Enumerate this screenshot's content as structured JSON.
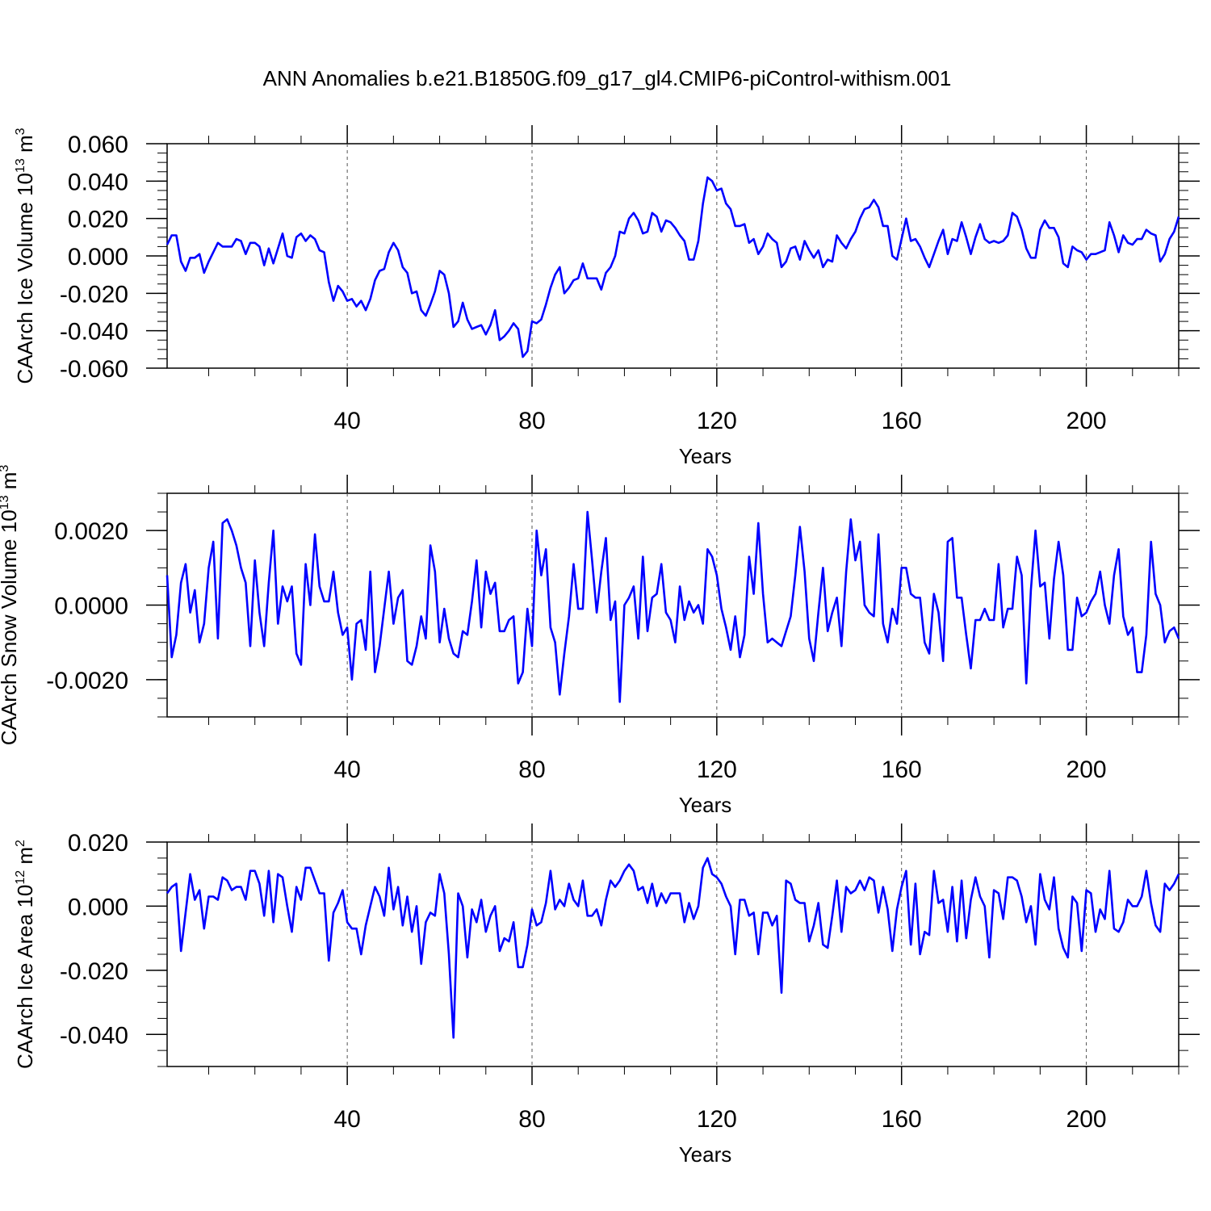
{
  "title": "ANN Anomalies b.e21.B1850G.f09_g17_gl4.CMIP6-piControl-withism.001",
  "chart_data": [
    {
      "type": "line",
      "name": "ice-volume",
      "title": "ANN Anomalies b.e21.B1850G.f09_g17_gl4.CMIP6-piControl-withism.001",
      "xlabel": "Years",
      "ylabel": {
        "text": "CAArch Ice Volume 10",
        "exp1": "13",
        "mid": " m",
        "exp2": "3"
      },
      "xlim": [
        1,
        220
      ],
      "ylim": [
        -0.06,
        0.06
      ],
      "xticks": [
        40,
        80,
        120,
        160,
        200
      ],
      "xtick_labels": [
        "40",
        "80",
        "120",
        "160",
        "200"
      ],
      "yticks": [
        0.06,
        0.04,
        0.02,
        0.0,
        -0.02,
        -0.04,
        -0.06
      ],
      "ytick_labels": [
        "0.060",
        "0.040",
        "0.020",
        "0.000",
        "-0.020",
        "-0.040",
        "-0.060"
      ],
      "grid": "dashed vertical at major x ticks",
      "color": "#0000ff",
      "series": [
        {
          "name": "CAArch Ice Volume",
          "x_start": 1,
          "values": [
            0.006,
            0.011,
            0.011,
            -0.003,
            -0.008,
            -0.001,
            -0.001,
            0.001,
            -0.009,
            -0.003,
            0.002,
            0.007,
            0.005,
            0.005,
            0.005,
            0.009,
            0.008,
            0.001,
            0.007,
            0.007,
            0.005,
            -0.005,
            0.004,
            -0.004,
            0.004,
            0.012,
            0.0,
            -0.001,
            0.01,
            0.012,
            0.008,
            0.011,
            0.009,
            0.003,
            0.002,
            -0.014,
            -0.024,
            -0.016,
            -0.019,
            -0.024,
            -0.023,
            -0.027,
            -0.024,
            -0.029,
            -0.023,
            -0.013,
            -0.008,
            -0.007,
            0.002,
            0.007,
            0.003,
            -0.006,
            -0.009,
            -0.02,
            -0.019,
            -0.029,
            -0.032,
            -0.026,
            -0.019,
            -0.008,
            -0.01,
            -0.02,
            -0.038,
            -0.035,
            -0.025,
            -0.034,
            -0.039,
            -0.038,
            -0.037,
            -0.042,
            -0.037,
            -0.029,
            -0.045,
            -0.043,
            -0.04,
            -0.036,
            -0.039,
            -0.054,
            -0.051,
            -0.035,
            -0.036,
            -0.034,
            -0.026,
            -0.017,
            -0.01,
            -0.006,
            -0.02,
            -0.017,
            -0.013,
            -0.012,
            -0.004,
            -0.012,
            -0.012,
            -0.012,
            -0.018,
            -0.009,
            -0.006,
            0.0,
            0.013,
            0.012,
            0.02,
            0.023,
            0.019,
            0.012,
            0.013,
            0.023,
            0.021,
            0.013,
            0.019,
            0.018,
            0.015,
            0.011,
            0.008,
            -0.002,
            -0.002,
            0.008,
            0.028,
            0.042,
            0.04,
            0.035,
            0.036,
            0.028,
            0.025,
            0.016,
            0.016,
            0.017,
            0.007,
            0.009,
            0.001,
            0.005,
            0.012,
            0.009,
            0.007,
            -0.006,
            -0.003,
            0.004,
            0.005,
            -0.002,
            0.008,
            0.003,
            -0.001,
            0.003,
            -0.006,
            -0.002,
            -0.003,
            0.011,
            0.007,
            0.004,
            0.009,
            0.013,
            0.02,
            0.025,
            0.026,
            0.03,
            0.026,
            0.016,
            0.016,
            0.0,
            -0.002,
            0.009,
            0.02,
            0.008,
            0.009,
            0.005,
            -0.001,
            -0.006,
            0.001,
            0.008,
            0.014,
            0.001,
            0.009,
            0.008,
            0.018,
            0.01,
            0.001,
            0.01,
            0.017,
            0.009,
            0.007,
            0.008,
            0.007,
            0.008,
            0.011,
            0.023,
            0.021,
            0.014,
            0.004,
            -0.001,
            -0.001,
            0.014,
            0.019,
            0.015,
            0.015,
            0.01,
            -0.004,
            -0.006,
            0.005,
            0.003,
            0.002,
            -0.002,
            0.001,
            0.001,
            0.002,
            0.003,
            0.018,
            0.011,
            0.002,
            0.011,
            0.007,
            0.006,
            0.009,
            0.009,
            0.014,
            0.012,
            0.011,
            -0.003,
            0.001,
            0.009,
            0.013,
            0.021
          ]
        }
      ]
    },
    {
      "type": "line",
      "name": "snow-volume",
      "xlabel": "Years",
      "ylabel": {
        "text": "CAArch Snow Volume 10",
        "exp1": "13",
        "mid": " m",
        "exp2": "3"
      },
      "xlim": [
        1,
        220
      ],
      "ylim": [
        -0.003,
        0.003
      ],
      "xticks": [
        40,
        80,
        120,
        160,
        200
      ],
      "xtick_labels": [
        "40",
        "80",
        "120",
        "160",
        "200"
      ],
      "yticks": [
        0.002,
        0.0,
        -0.002
      ],
      "ytick_labels": [
        "0.0020",
        "0.0000",
        "-0.0020"
      ],
      "grid": "dashed vertical at major x ticks",
      "color": "#0000ff",
      "series": [
        {
          "name": "CAArch Snow Volume",
          "x_start": 1,
          "values": [
            0.0008,
            -0.0014,
            -0.0008,
            0.0006,
            0.0011,
            -0.0002,
            0.0004,
            -0.001,
            -0.0005,
            0.001,
            0.0017,
            -0.0009,
            0.0022,
            0.0023,
            0.002,
            0.0016,
            0.001,
            0.0006,
            -0.0011,
            0.0012,
            -0.0002,
            -0.0011,
            0.0006,
            0.002,
            -0.0005,
            0.0005,
            0.0001,
            0.0005,
            -0.0013,
            -0.0016,
            0.0011,
            0.0,
            0.0019,
            0.0005,
            0.0001,
            0.0001,
            0.0009,
            -0.0002,
            -0.0008,
            -0.0006,
            -0.002,
            -0.0005,
            -0.0004,
            -0.0012,
            0.0009,
            -0.0018,
            -0.0011,
            -0.0001,
            0.0009,
            -0.0005,
            0.0002,
            0.0004,
            -0.0015,
            -0.0016,
            -0.0011,
            -0.0003,
            -0.0009,
            0.0016,
            0.0009,
            -0.001,
            -0.0001,
            -0.0009,
            -0.0013,
            -0.0014,
            -0.0007,
            -0.0008,
            0.0001,
            0.0012,
            -0.0006,
            0.0009,
            0.0003,
            0.0006,
            -0.0007,
            -0.0007,
            -0.0004,
            -0.0003,
            -0.0021,
            -0.0018,
            -0.0001,
            -0.0011,
            0.002,
            0.0008,
            0.0015,
            -0.0006,
            -0.001,
            -0.0024,
            -0.0013,
            -0.0003,
            0.0011,
            -0.0001,
            -0.0001,
            0.0025,
            0.0012,
            -0.0002,
            0.0009,
            0.0018,
            -0.0004,
            0.0001,
            -0.0026,
            0.0,
            0.0002,
            0.0005,
            -0.0009,
            0.0013,
            -0.0007,
            0.0002,
            0.0003,
            0.0011,
            -0.0002,
            -0.0004,
            -0.001,
            0.0005,
            -0.0004,
            0.0001,
            -0.0002,
            0.0,
            -0.0005,
            0.0015,
            0.0013,
            0.0008,
            -0.0001,
            -0.0006,
            -0.0012,
            -0.0003,
            -0.0014,
            -0.0008,
            0.0013,
            0.0003,
            0.0022,
            0.0003,
            -0.001,
            -0.0009,
            -0.001,
            -0.0011,
            -0.0007,
            -0.0003,
            0.0008,
            0.0021,
            0.0009,
            -0.0009,
            -0.0015,
            -0.0002,
            0.001,
            -0.0007,
            -0.0002,
            0.0002,
            -0.0011,
            0.0009,
            0.0023,
            0.0012,
            0.0017,
            0.0,
            -0.0002,
            -0.0003,
            0.0019,
            -0.0005,
            -0.001,
            -0.0001,
            -0.0005,
            0.001,
            0.001,
            0.0003,
            0.0002,
            0.0002,
            -0.001,
            -0.0013,
            0.0003,
            -0.0002,
            -0.0015,
            0.0017,
            0.0018,
            0.0002,
            0.0002,
            -0.0008,
            -0.0017,
            -0.0004,
            -0.0004,
            -0.0001,
            -0.0004,
            -0.0004,
            0.0011,
            -0.0006,
            -0.0001,
            -0.0001,
            0.0013,
            0.0008,
            -0.0021,
            0.0004,
            0.002,
            0.0005,
            0.0006,
            -0.0009,
            0.0007,
            0.0017,
            0.0008,
            -0.0012,
            -0.0012,
            0.0002,
            -0.0003,
            -0.0002,
            0.0001,
            0.0003,
            0.0009,
            0.0,
            -0.0005,
            0.0008,
            0.0015,
            -0.0003,
            -0.0008,
            -0.0006,
            -0.0018,
            -0.0018,
            -0.0008,
            0.0017,
            0.0003,
            0.0,
            -0.001,
            -0.0007,
            -0.0006,
            -0.0009
          ]
        }
      ]
    },
    {
      "type": "line",
      "name": "ice-area",
      "xlabel": "Years",
      "ylabel": {
        "text": "CAArch Ice Area 10",
        "exp1": "12",
        "mid": " m",
        "exp2": "2"
      },
      "xlim": [
        1,
        220
      ],
      "ylim": [
        -0.05,
        0.02
      ],
      "xticks": [
        40,
        80,
        120,
        160,
        200
      ],
      "xtick_labels": [
        "40",
        "80",
        "120",
        "160",
        "200"
      ],
      "yticks": [
        0.02,
        0.0,
        -0.02,
        -0.04
      ],
      "ytick_labels": [
        "0.020",
        "0.000",
        "-0.020",
        "-0.040"
      ],
      "grid": "dashed vertical at major x ticks",
      "color": "#0000ff",
      "series": [
        {
          "name": "CAArch Ice Area",
          "x_start": 1,
          "values": [
            0.004,
            0.006,
            0.007,
            -0.014,
            -0.002,
            0.01,
            0.002,
            0.005,
            -0.007,
            0.003,
            0.003,
            0.002,
            0.009,
            0.008,
            0.005,
            0.006,
            0.006,
            0.002,
            0.011,
            0.011,
            0.007,
            -0.003,
            0.011,
            -0.005,
            0.01,
            0.009,
            0.0,
            -0.008,
            0.006,
            0.002,
            0.012,
            0.012,
            0.008,
            0.004,
            0.004,
            -0.017,
            -0.002,
            0.001,
            0.005,
            -0.005,
            -0.007,
            -0.007,
            -0.015,
            -0.006,
            0.0,
            0.006,
            0.003,
            -0.003,
            0.012,
            -0.001,
            0.006,
            -0.006,
            0.003,
            -0.008,
            0.0,
            -0.018,
            -0.005,
            -0.002,
            -0.003,
            0.01,
            0.004,
            -0.015,
            -0.041,
            0.004,
            0.0,
            -0.016,
            -0.001,
            -0.005,
            0.002,
            -0.008,
            -0.003,
            0.0,
            -0.014,
            -0.01,
            -0.011,
            -0.005,
            -0.019,
            -0.019,
            -0.012,
            -0.001,
            -0.006,
            -0.005,
            0.001,
            0.011,
            -0.001,
            0.002,
            0.0,
            0.007,
            0.002,
            0.0,
            0.008,
            -0.003,
            -0.003,
            -0.001,
            -0.006,
            0.002,
            0.008,
            0.006,
            0.008,
            0.011,
            0.013,
            0.011,
            0.005,
            0.006,
            0.001,
            0.007,
            0.0,
            0.004,
            0.001,
            0.004,
            0.004,
            0.004,
            -0.005,
            0.001,
            -0.004,
            0.0,
            0.012,
            0.015,
            0.01,
            0.009,
            0.007,
            0.003,
            0.0,
            -0.015,
            0.002,
            0.002,
            -0.003,
            -0.002,
            -0.015,
            -0.002,
            -0.002,
            -0.006,
            -0.003,
            -0.027,
            0.008,
            0.007,
            0.002,
            0.001,
            0.001,
            -0.011,
            -0.006,
            0.001,
            -0.012,
            -0.013,
            -0.003,
            0.008,
            -0.008,
            0.006,
            0.004,
            0.005,
            0.008,
            0.005,
            0.009,
            0.008,
            -0.002,
            0.006,
            -0.001,
            -0.014,
            -0.001,
            0.006,
            0.011,
            -0.012,
            0.007,
            -0.015,
            -0.008,
            -0.009,
            0.011,
            0.001,
            0.002,
            -0.008,
            0.006,
            -0.011,
            0.008,
            -0.01,
            0.002,
            0.009,
            0.003,
            0.0,
            -0.016,
            0.005,
            0.004,
            -0.004,
            0.009,
            0.009,
            0.008,
            0.003,
            -0.005,
            0.0,
            -0.012,
            0.01,
            0.002,
            -0.001,
            0.009,
            -0.007,
            -0.013,
            -0.016,
            0.003,
            0.001,
            -0.014,
            0.005,
            0.004,
            -0.008,
            -0.001,
            -0.004,
            0.011,
            -0.007,
            -0.008,
            -0.005,
            0.002,
            0.0,
            0.0,
            0.003,
            0.011,
            0.001,
            -0.006,
            -0.008,
            0.007,
            0.005,
            0.007,
            0.01
          ]
        }
      ]
    }
  ]
}
